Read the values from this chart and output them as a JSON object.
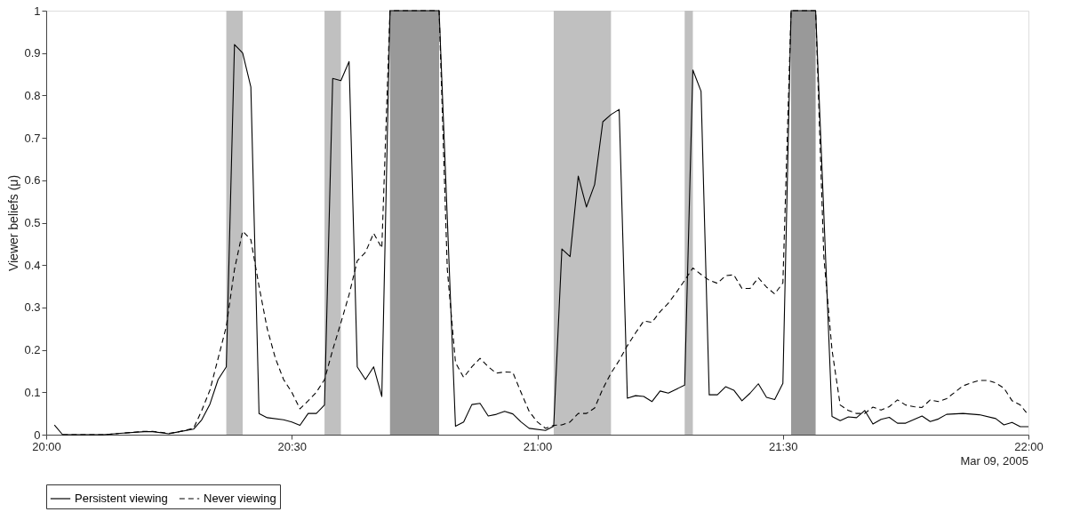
{
  "chart_data": {
    "type": "line",
    "ylabel": "Viewer beliefs (μ)",
    "annotations": [
      "Mar 09, 2005"
    ],
    "xlim": [
      "2005-03-09T20:00",
      "2005-03-09T22:00"
    ],
    "xticks": [
      {
        "value": "2005-03-09T20:00",
        "label": "20:00"
      },
      {
        "value": "2005-03-09T20:30",
        "label": "20:30"
      },
      {
        "value": "2005-03-09T21:00",
        "label": "21:00"
      },
      {
        "value": "2005-03-09T21:30",
        "label": "21:30"
      },
      {
        "value": "2005-03-09T22:00",
        "label": "22:00"
      }
    ],
    "ylim": [
      0,
      1
    ],
    "yticks": [
      0,
      0.1,
      0.2,
      0.3,
      0.4,
      0.5,
      0.6,
      0.7,
      0.8,
      0.9,
      1
    ],
    "grid": false,
    "legend": "bottom",
    "marker": "none",
    "bands": [
      {
        "axis": "x",
        "from": "2005-03-09T20:22",
        "to": "2005-03-09T20:24",
        "color": "#c0c0c0"
      },
      {
        "axis": "x",
        "from": "2005-03-09T20:34",
        "to": "2005-03-09T20:36",
        "color": "#c0c0c0"
      },
      {
        "axis": "x",
        "from": "2005-03-09T20:42",
        "to": "2005-03-09T20:48",
        "color": "#999999"
      },
      {
        "axis": "x",
        "from": "2005-03-09T21:02",
        "to": "2005-03-09T21:09",
        "color": "#c0c0c0"
      },
      {
        "axis": "x",
        "from": "2005-03-09T21:18",
        "to": "2005-03-09T21:19",
        "color": "#c0c0c0"
      },
      {
        "axis": "x",
        "from": "2005-03-09T21:31",
        "to": "2005-03-09T21:34",
        "color": "#999999"
      }
    ],
    "series": [
      {
        "name": "Persistent viewing",
        "color": "#000000",
        "line_style": "solid",
        "x": [
          "2005-03-09T20:01",
          "2005-03-09T20:02",
          "2005-03-09T20:07",
          "2005-03-09T20:09",
          "2005-03-09T20:12",
          "2005-03-09T20:13",
          "2005-03-09T20:15",
          "2005-03-09T20:16",
          "2005-03-09T20:18",
          "2005-03-09T20:19",
          "2005-03-09T20:20",
          "2005-03-09T20:21",
          "2005-03-09T20:22",
          "2005-03-09T20:23",
          "2005-03-09T20:24",
          "2005-03-09T20:25",
          "2005-03-09T20:26",
          "2005-03-09T20:27",
          "2005-03-09T20:29",
          "2005-03-09T20:30",
          "2005-03-09T20:31",
          "2005-03-09T20:32",
          "2005-03-09T20:33",
          "2005-03-09T20:34",
          "2005-03-09T20:35",
          "2005-03-09T20:36",
          "2005-03-09T20:37",
          "2005-03-09T20:38",
          "2005-03-09T20:39",
          "2005-03-09T20:40",
          "2005-03-09T20:41",
          "2005-03-09T20:42",
          "2005-03-09T20:48",
          "2005-03-09T20:50",
          "2005-03-09T20:51",
          "2005-03-09T20:52",
          "2005-03-09T20:53",
          "2005-03-09T20:54",
          "2005-03-09T20:55",
          "2005-03-09T20:56",
          "2005-03-09T20:57",
          "2005-03-09T20:58",
          "2005-03-09T20:59",
          "2005-03-09T21:01",
          "2005-03-09T21:02",
          "2005-03-09T21:03",
          "2005-03-09T21:04",
          "2005-03-09T21:05",
          "2005-03-09T21:06",
          "2005-03-09T21:07",
          "2005-03-09T21:08",
          "2005-03-09T21:09",
          "2005-03-09T21:10",
          "2005-03-09T21:11",
          "2005-03-09T21:12",
          "2005-03-09T21:13",
          "2005-03-09T21:14",
          "2005-03-09T21:15",
          "2005-03-09T21:16",
          "2005-03-09T21:18",
          "2005-03-09T21:19",
          "2005-03-09T21:20",
          "2005-03-09T21:21",
          "2005-03-09T21:22",
          "2005-03-09T21:23",
          "2005-03-09T21:24",
          "2005-03-09T21:25",
          "2005-03-09T21:26",
          "2005-03-09T21:27",
          "2005-03-09T21:28",
          "2005-03-09T21:29",
          "2005-03-09T21:30",
          "2005-03-09T21:31",
          "2005-03-09T21:34",
          "2005-03-09T21:36",
          "2005-03-09T21:37",
          "2005-03-09T21:38",
          "2005-03-09T21:39",
          "2005-03-09T21:40",
          "2005-03-09T21:41",
          "2005-03-09T21:42",
          "2005-03-09T21:43",
          "2005-03-09T21:44",
          "2005-03-09T21:45",
          "2005-03-09T21:47",
          "2005-03-09T21:48",
          "2005-03-09T21:49",
          "2005-03-09T21:50",
          "2005-03-09T21:52",
          "2005-03-09T21:54",
          "2005-03-09T21:56",
          "2005-03-09T21:57",
          "2005-03-09T21:58",
          "2005-03-09T21:59",
          "2005-03-09T22:00"
        ],
        "values": [
          0.023,
          0,
          0,
          0.003,
          0.007,
          0.007,
          0.002,
          0.006,
          0.013,
          0.035,
          0.072,
          0.13,
          0.16,
          0.92,
          0.9,
          0.82,
          0.05,
          0.04,
          0.035,
          0.03,
          0.022,
          0.05,
          0.05,
          0.07,
          0.84,
          0.835,
          0.88,
          0.16,
          0.13,
          0.16,
          0.09,
          1,
          1,
          0.02,
          0.03,
          0.071,
          0.074,
          0.044,
          0.048,
          0.055,
          0.049,
          0.03,
          0.015,
          0.01,
          0.02,
          0.438,
          0.42,
          0.61,
          0.537,
          0.59,
          0.738,
          0.755,
          0.767,
          0.086,
          0.092,
          0.09,
          0.078,
          0.103,
          0.098,
          0.117,
          0.86,
          0.81,
          0.094,
          0.094,
          0.113,
          0.105,
          0.08,
          0.098,
          0.12,
          0.088,
          0.083,
          0.121,
          1,
          1,
          0.043,
          0.033,
          0.042,
          0.04,
          0.057,
          0.025,
          0.036,
          0.041,
          0.027,
          0.027,
          0.044,
          0.031,
          0.037,
          0.048,
          0.05,
          0.047,
          0.038,
          0.023,
          0.029,
          0.019,
          0.019
        ]
      },
      {
        "name": "Never viewing",
        "color": "#000000",
        "line_style": "dashed",
        "x": [
          "2005-03-09T20:02",
          "2005-03-09T20:07",
          "2005-03-09T20:09",
          "2005-03-09T20:12",
          "2005-03-09T20:13",
          "2005-03-09T20:15",
          "2005-03-09T20:16",
          "2005-03-09T20:18",
          "2005-03-09T20:19",
          "2005-03-09T20:20",
          "2005-03-09T20:21",
          "2005-03-09T20:22",
          "2005-03-09T20:23",
          "2005-03-09T20:24",
          "2005-03-09T20:25",
          "2005-03-09T20:26",
          "2005-03-09T20:27",
          "2005-03-09T20:28",
          "2005-03-09T20:29",
          "2005-03-09T20:30",
          "2005-03-09T20:31",
          "2005-03-09T20:32",
          "2005-03-09T20:33",
          "2005-03-09T20:34",
          "2005-03-09T20:35",
          "2005-03-09T20:36",
          "2005-03-09T20:37",
          "2005-03-09T20:38",
          "2005-03-09T20:39",
          "2005-03-09T20:40",
          "2005-03-09T20:41",
          "2005-03-09T20:42",
          "2005-03-09T20:48",
          "2005-03-09T20:49",
          "2005-03-09T20:50",
          "2005-03-09T20:51",
          "2005-03-09T20:52",
          "2005-03-09T20:53",
          "2005-03-09T20:54",
          "2005-03-09T20:55",
          "2005-03-09T20:56",
          "2005-03-09T20:57",
          "2005-03-09T20:58",
          "2005-03-09T20:59",
          "2005-03-09T21:00",
          "2005-03-09T21:01",
          "2005-03-09T21:02",
          "2005-03-09T21:03",
          "2005-03-09T21:04",
          "2005-03-09T21:05",
          "2005-03-09T21:06",
          "2005-03-09T21:07",
          "2005-03-09T21:08",
          "2005-03-09T21:09",
          "2005-03-09T21:10",
          "2005-03-09T21:11",
          "2005-03-09T21:12",
          "2005-03-09T21:13",
          "2005-03-09T21:14",
          "2005-03-09T21:15",
          "2005-03-09T21:16",
          "2005-03-09T21:17",
          "2005-03-09T21:18",
          "2005-03-09T21:19",
          "2005-03-09T21:20",
          "2005-03-09T21:21",
          "2005-03-09T21:22",
          "2005-03-09T21:23",
          "2005-03-09T21:24",
          "2005-03-09T21:25",
          "2005-03-09T21:26",
          "2005-03-09T21:27",
          "2005-03-09T21:28",
          "2005-03-09T21:29",
          "2005-03-09T21:30",
          "2005-03-09T21:31",
          "2005-03-09T21:34",
          "2005-03-09T21:35",
          "2005-03-09T21:36",
          "2005-03-09T21:37",
          "2005-03-09T21:38",
          "2005-03-09T21:39",
          "2005-03-09T21:40",
          "2005-03-09T21:41",
          "2005-03-09T21:42",
          "2005-03-09T21:43",
          "2005-03-09T21:44",
          "2005-03-09T21:45",
          "2005-03-09T21:46",
          "2005-03-09T21:47",
          "2005-03-09T21:48",
          "2005-03-09T21:49",
          "2005-03-09T21:50",
          "2005-03-09T21:52",
          "2005-03-09T21:53",
          "2005-03-09T21:54",
          "2005-03-09T21:55",
          "2005-03-09T21:56",
          "2005-03-09T21:57",
          "2005-03-09T21:58",
          "2005-03-09T21:59",
          "2005-03-09T22:00"
        ],
        "values": [
          0,
          0,
          0.003,
          0.008,
          0.008,
          0.003,
          0.006,
          0.015,
          0.057,
          0.105,
          0.18,
          0.255,
          0.39,
          0.48,
          0.46,
          0.35,
          0.25,
          0.18,
          0.13,
          0.1,
          0.061,
          0.08,
          0.1,
          0.13,
          0.2,
          0.264,
          0.33,
          0.41,
          0.43,
          0.475,
          0.44,
          1,
          1,
          0.39,
          0.17,
          0.135,
          0.16,
          0.18,
          0.16,
          0.145,
          0.148,
          0.147,
          0.1,
          0.055,
          0.03,
          0.015,
          0.022,
          0.023,
          0.03,
          0.05,
          0.05,
          0.063,
          0.108,
          0.145,
          0.175,
          0.21,
          0.24,
          0.268,
          0.265,
          0.29,
          0.31,
          0.336,
          0.364,
          0.393,
          0.378,
          0.364,
          0.357,
          0.375,
          0.377,
          0.345,
          0.345,
          0.37,
          0.348,
          0.332,
          0.358,
          1,
          1,
          0.42,
          0.2,
          0.07,
          0.057,
          0.05,
          0.05,
          0.065,
          0.058,
          0.066,
          0.082,
          0.07,
          0.066,
          0.064,
          0.082,
          0.078,
          0.085,
          0.115,
          0.122,
          0.128,
          0.128,
          0.122,
          0.11,
          0.08,
          0.07,
          0.046
        ]
      }
    ]
  }
}
